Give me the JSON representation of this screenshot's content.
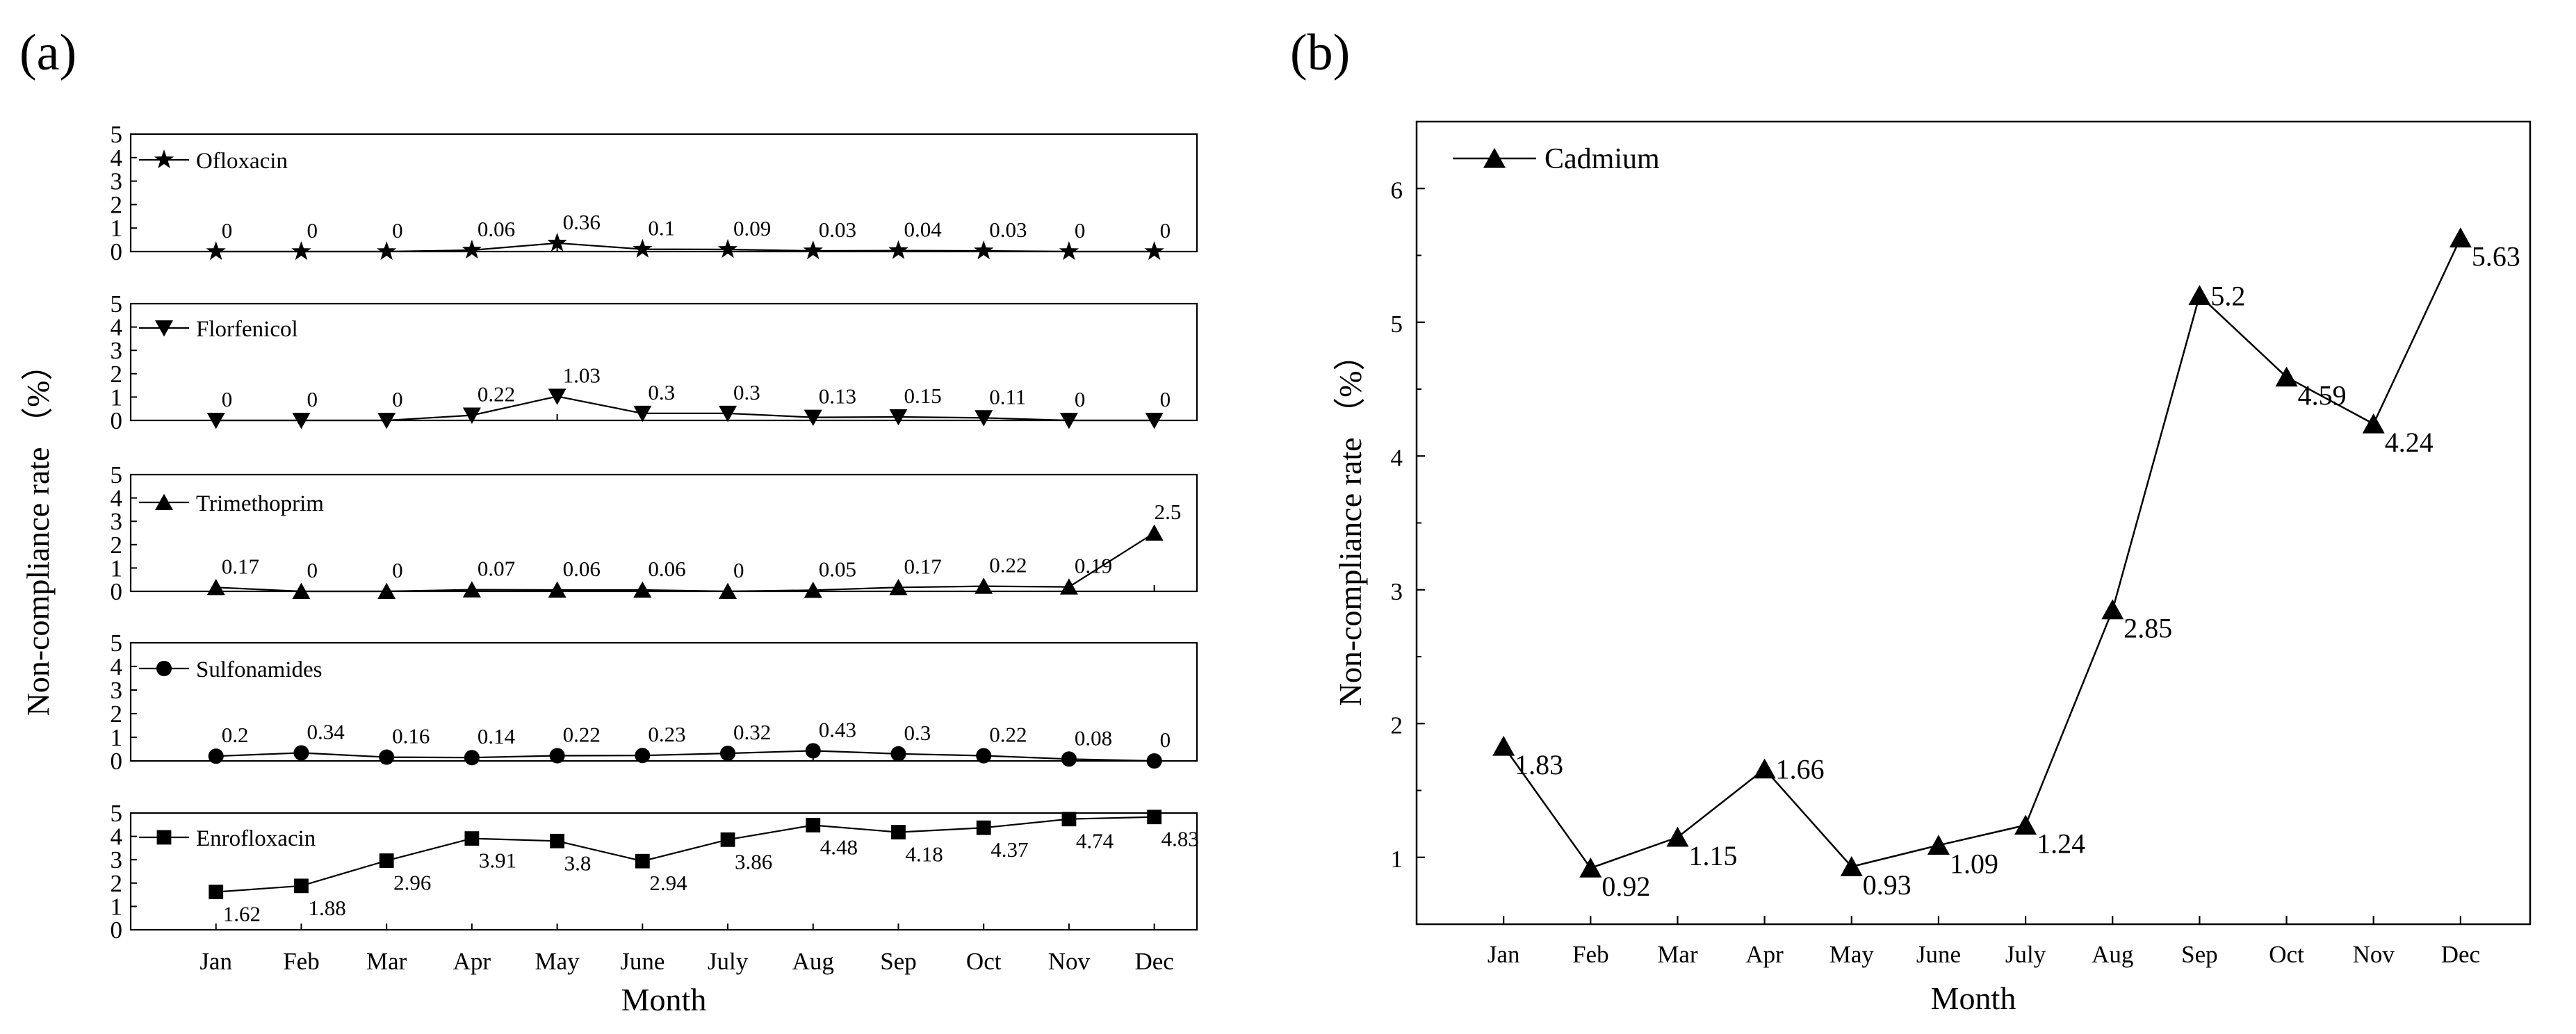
{
  "panels": [
    {
      "letter": "(a)"
    },
    {
      "letter": "(b)"
    }
  ],
  "chart_data": [
    {
      "type": "line",
      "panel": "(a)",
      "categories": [
        "Jan",
        "Feb",
        "Mar",
        "Apr",
        "May",
        "June",
        "July",
        "Aug",
        "Sep",
        "Oct",
        "Nov",
        "Dec"
      ],
      "xlabel": "Month",
      "ylabel": "Non-compliance rate （%）",
      "ylim": [
        0,
        5
      ],
      "yticks": [
        "0",
        "1",
        "2",
        "3",
        "4",
        "5"
      ],
      "grid": false,
      "legend": "top-left of each subplot",
      "series": [
        {
          "name": "Ofloxacin",
          "marker": "star",
          "values": [
            0,
            0,
            0,
            0.06,
            0.36,
            0.1,
            0.09,
            0.03,
            0.04,
            0.03,
            0,
            0
          ],
          "labels": [
            "0",
            "0",
            "0",
            "0.06",
            "0.36",
            "0.1",
            "0.09",
            "0.03",
            "0.04",
            "0.03",
            "0",
            "0"
          ]
        },
        {
          "name": "Florfenicol",
          "marker": "triangle-down",
          "values": [
            0,
            0,
            0,
            0.22,
            1.03,
            0.3,
            0.3,
            0.13,
            0.15,
            0.11,
            0,
            0
          ],
          "labels": [
            "0",
            "0",
            "0",
            "0.22",
            "1.03",
            "0.3",
            "0.3",
            "0.13",
            "0.15",
            "0.11",
            "0",
            "0"
          ]
        },
        {
          "name": "Trimethoprim",
          "marker": "triangle-up",
          "values": [
            0.17,
            0,
            0,
            0.07,
            0.06,
            0.06,
            0,
            0.05,
            0.17,
            0.22,
            0.19,
            2.5
          ],
          "labels": [
            "0.17",
            "0",
            "0",
            "0.07",
            "0.06",
            "0.06",
            "0",
            "0.05",
            "0.17",
            "0.22",
            "0.19",
            "2.5"
          ]
        },
        {
          "name": "Sulfonamides",
          "marker": "circle",
          "values": [
            0.2,
            0.34,
            0.16,
            0.14,
            0.22,
            0.23,
            0.32,
            0.43,
            0.3,
            0.22,
            0.08,
            0
          ],
          "labels": [
            "0.2",
            "0.34",
            "0.16",
            "0.14",
            "0.22",
            "0.23",
            "0.32",
            "0.43",
            "0.3",
            "0.22",
            "0.08",
            "0"
          ]
        },
        {
          "name": "Enrofloxacin",
          "marker": "square",
          "values": [
            1.62,
            1.88,
            2.96,
            3.91,
            3.8,
            2.94,
            3.86,
            4.48,
            4.18,
            4.37,
            4.74,
            4.83
          ],
          "labels": [
            "1.62",
            "1.88",
            "2.96",
            "3.91",
            "3.8",
            "2.94",
            "3.86",
            "4.48",
            "4.18",
            "4.37",
            "4.74",
            "4.83"
          ]
        }
      ]
    },
    {
      "type": "line",
      "panel": "(b)",
      "categories": [
        "Jan",
        "Feb",
        "Mar",
        "Apr",
        "May",
        "June",
        "July",
        "Aug",
        "Sep",
        "Oct",
        "Nov",
        "Dec"
      ],
      "xlabel": "Month",
      "ylabel": "Non-compliance rate （%）",
      "ylim": [
        0.5,
        6.5
      ],
      "yticks": [
        "1",
        "2",
        "3",
        "4",
        "5",
        "6"
      ],
      "grid": false,
      "legend": "top-left",
      "series": [
        {
          "name": "Cadmium",
          "marker": "triangle-up",
          "values": [
            1.83,
            0.92,
            1.15,
            1.66,
            0.93,
            1.09,
            1.24,
            2.85,
            5.2,
            4.59,
            4.24,
            5.63
          ],
          "labels": [
            "1.83",
            "0.92",
            "1.15",
            "1.66",
            "0.93",
            "1.09",
            "1.24",
            "2.85",
            "5.2",
            "4.59",
            "4.24",
            "5.63"
          ]
        }
      ]
    }
  ]
}
